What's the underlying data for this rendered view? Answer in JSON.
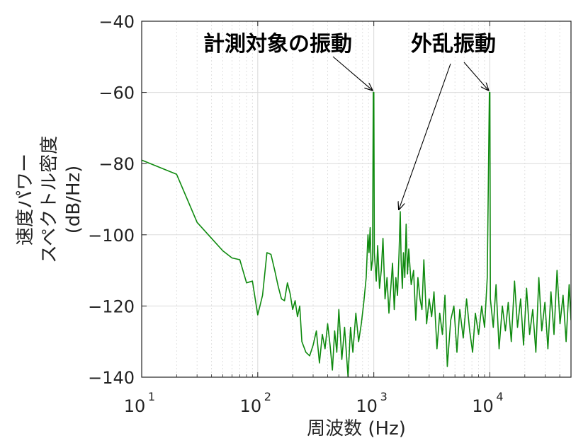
{
  "chart_data": {
    "type": "line",
    "title": "",
    "xlabel": "周波数 (Hz)",
    "ylabel_lines": [
      "速度パワー",
      "スペクトル密度",
      "(dB/Hz)"
    ],
    "xscale": "log",
    "xlim": [
      10,
      50000
    ],
    "ylim": [
      -140,
      -40
    ],
    "yticks": [
      -140,
      -120,
      -100,
      -80,
      -60,
      -40
    ],
    "yticklabels": [
      "−140",
      "−120",
      "−100",
      "−80",
      "−60",
      "−40"
    ],
    "xtick_labels": [
      {
        "x": 10,
        "base": "10",
        "exp": "1"
      },
      {
        "x": 100,
        "base": "10",
        "exp": "2"
      },
      {
        "x": 1000,
        "base": "10",
        "exp": "3"
      },
      {
        "x": 10000,
        "base": "10",
        "exp": "4"
      }
    ],
    "grid": true,
    "line_color": "#0f8a0f",
    "series": [
      {
        "values": [
          [
            10,
            -79
          ],
          [
            20,
            -83
          ],
          [
            30,
            -96.5
          ],
          [
            40,
            -101
          ],
          [
            50,
            -104.5
          ],
          [
            60,
            -106.5
          ],
          [
            70,
            -107
          ],
          [
            80,
            -113.5
          ],
          [
            90,
            -113
          ],
          [
            100,
            -122.5
          ],
          [
            110,
            -117
          ],
          [
            120,
            -105
          ],
          [
            130,
            -105.5
          ],
          [
            140,
            -110
          ],
          [
            150,
            -114.5
          ],
          [
            160,
            -118
          ],
          [
            170,
            -118.5
          ],
          [
            180,
            -113.5
          ],
          [
            190,
            -116.5
          ],
          [
            200,
            -121
          ],
          [
            210,
            -118.5
          ],
          [
            220,
            -123
          ],
          [
            230,
            -120
          ],
          [
            240,
            -130
          ],
          [
            260,
            -133
          ],
          [
            280,
            -134
          ],
          [
            300,
            -131
          ],
          [
            320,
            -127
          ],
          [
            340,
            -136
          ],
          [
            360,
            -128
          ],
          [
            380,
            -132
          ],
          [
            400,
            -125
          ],
          [
            420,
            -131
          ],
          [
            440,
            -138
          ],
          [
            460,
            -127
          ],
          [
            480,
            -133
          ],
          [
            500,
            -121
          ],
          [
            530,
            -135
          ],
          [
            560,
            -126
          ],
          [
            600,
            -140
          ],
          [
            630,
            -126
          ],
          [
            660,
            -133
          ],
          [
            700,
            -122
          ],
          [
            740,
            -130
          ],
          [
            780,
            -125
          ],
          [
            820,
            -119
          ],
          [
            860,
            -112
          ],
          [
            890,
            -100
          ],
          [
            910,
            -105
          ],
          [
            930,
            -98
          ],
          [
            950,
            -110
          ],
          [
            975,
            -107
          ],
          [
            990,
            -60
          ],
          [
            1000,
            -60
          ],
          [
            1010,
            -105
          ],
          [
            1050,
            -113
          ],
          [
            1080,
            -103
          ],
          [
            1120,
            -115
          ],
          [
            1160,
            -110
          ],
          [
            1200,
            -101
          ],
          [
            1250,
            -118
          ],
          [
            1300,
            -112
          ],
          [
            1350,
            -122
          ],
          [
            1400,
            -115
          ],
          [
            1450,
            -108
          ],
          [
            1500,
            -121
          ],
          [
            1550,
            -112
          ],
          [
            1600,
            -117
          ],
          [
            1650,
            -105
          ],
          [
            1690,
            -93.5
          ],
          [
            1720,
            -107
          ],
          [
            1760,
            -115
          ],
          [
            1800,
            -105
          ],
          [
            1850,
            -112
          ],
          [
            1900,
            -97
          ],
          [
            1950,
            -111
          ],
          [
            2000,
            -104
          ],
          [
            2100,
            -114
          ],
          [
            2200,
            -110
          ],
          [
            2300,
            -124
          ],
          [
            2400,
            -112
          ],
          [
            2500,
            -118
          ],
          [
            2600,
            -121
          ],
          [
            2700,
            -107
          ],
          [
            2850,
            -125
          ],
          [
            3000,
            -118
          ],
          [
            3150,
            -123
          ],
          [
            3300,
            -116
          ],
          [
            3500,
            -132
          ],
          [
            3700,
            -122
          ],
          [
            3900,
            -128
          ],
          [
            4100,
            -117
          ],
          [
            4300,
            -137
          ],
          [
            4600,
            -124
          ],
          [
            4900,
            -120
          ],
          [
            5200,
            -133
          ],
          [
            5500,
            -121
          ],
          [
            5900,
            -129
          ],
          [
            6300,
            -118
          ],
          [
            6700,
            -127
          ],
          [
            7100,
            -133
          ],
          [
            7500,
            -122
          ],
          [
            8000,
            -128
          ],
          [
            8500,
            -120
          ],
          [
            9000,
            -126
          ],
          [
            9500,
            -112
          ],
          [
            9900,
            -60
          ],
          [
            10000,
            -60
          ],
          [
            10100,
            -118
          ],
          [
            10700,
            -126
          ],
          [
            11300,
            -114
          ],
          [
            12000,
            -132
          ],
          [
            12800,
            -120
          ],
          [
            13600,
            -127
          ],
          [
            14400,
            -119
          ],
          [
            15300,
            -130
          ],
          [
            16300,
            -113
          ],
          [
            17300,
            -126
          ],
          [
            18400,
            -118
          ],
          [
            19500,
            -131
          ],
          [
            20700,
            -115
          ],
          [
            22000,
            -128
          ],
          [
            23400,
            -121
          ],
          [
            24900,
            -133
          ],
          [
            26400,
            -112
          ],
          [
            28000,
            -127
          ],
          [
            29800,
            -119
          ],
          [
            31600,
            -132
          ],
          [
            33600,
            -116
          ],
          [
            35700,
            -128
          ],
          [
            37900,
            -110
          ],
          [
            40200,
            -125
          ],
          [
            42700,
            -117
          ],
          [
            45400,
            -130
          ],
          [
            48200,
            -114
          ],
          [
            50000,
            -124
          ]
        ]
      }
    ],
    "annotations": [
      {
        "text": "計測対象の振動",
        "targets": [
          [
            1000,
            -60
          ]
        ]
      },
      {
        "text": "外乱振動",
        "targets": [
          [
            1690,
            -93.5
          ],
          [
            10000,
            -60
          ]
        ]
      }
    ]
  }
}
